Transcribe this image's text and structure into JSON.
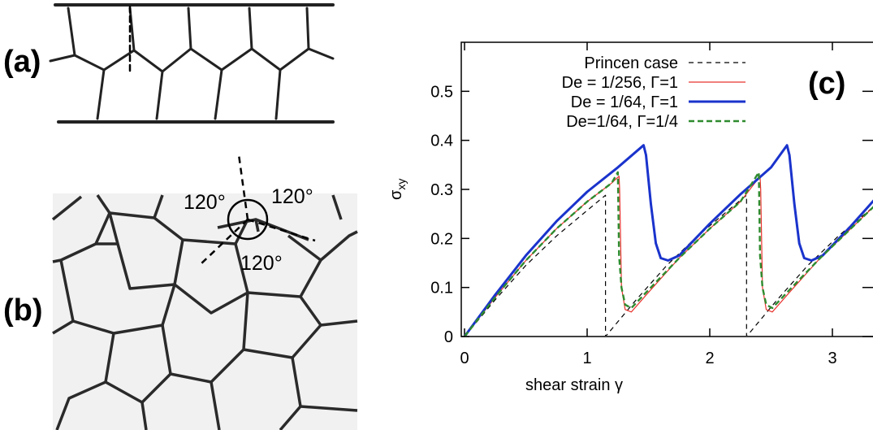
{
  "panels": {
    "a": {
      "label": "(a)"
    },
    "b": {
      "label": "(b)",
      "angles": [
        "120°",
        "120°",
        "120°"
      ]
    },
    "c": {
      "label": "(c)"
    }
  },
  "chart_data": {
    "type": "line",
    "title": "",
    "xlabel": "shear strain γ",
    "ylabel": "σxy",
    "xlim": [
      0,
      3.4
    ],
    "ylim": [
      0,
      0.6
    ],
    "xticks": [
      0,
      1,
      2,
      3
    ],
    "yticks": [
      0,
      0.1,
      0.2,
      0.3,
      0.4,
      0.5
    ],
    "grid": false,
    "legend_position": "top-left",
    "series": [
      {
        "name": "Princen case",
        "color": "#000000",
        "style": "dashed",
        "x": [
          0,
          0.25,
          0.5,
          0.75,
          1.0,
          1.15,
          1.15,
          1.4,
          1.65,
          1.9,
          2.15,
          2.3,
          2.3,
          2.55,
          2.8,
          3.05,
          3.3,
          3.4
        ],
        "y": [
          0,
          0.075,
          0.145,
          0.205,
          0.257,
          0.288,
          0.0,
          0.075,
          0.145,
          0.205,
          0.257,
          0.288,
          0.0,
          0.075,
          0.145,
          0.205,
          0.257,
          0.275
        ]
      },
      {
        "name": "De = 1/256, Γ=1",
        "color": "#e8332e",
        "style": "solid",
        "x": [
          0,
          0.25,
          0.5,
          0.75,
          1.0,
          1.2,
          1.26,
          1.265,
          1.28,
          1.31,
          1.36,
          1.5,
          1.75,
          2.0,
          2.25,
          2.41,
          2.415,
          2.43,
          2.46,
          2.51,
          2.65,
          2.9,
          3.15,
          3.4
        ],
        "y": [
          0,
          0.08,
          0.155,
          0.22,
          0.275,
          0.313,
          0.327,
          0.3,
          0.1,
          0.055,
          0.05,
          0.09,
          0.16,
          0.22,
          0.275,
          0.327,
          0.3,
          0.1,
          0.055,
          0.05,
          0.09,
          0.16,
          0.22,
          0.28
        ]
      },
      {
        "name": "De = 1/64, Γ=1",
        "color": "#1a33cc",
        "style": "solid",
        "x": [
          0,
          0.25,
          0.5,
          0.75,
          1.0,
          1.25,
          1.46,
          1.48,
          1.52,
          1.56,
          1.6,
          1.66,
          1.75,
          2.0,
          2.25,
          2.5,
          2.63,
          2.65,
          2.69,
          2.73,
          2.77,
          2.83,
          2.92,
          3.15,
          3.4
        ],
        "y": [
          0,
          0.085,
          0.165,
          0.235,
          0.295,
          0.345,
          0.39,
          0.37,
          0.27,
          0.19,
          0.16,
          0.155,
          0.165,
          0.23,
          0.29,
          0.345,
          0.39,
          0.37,
          0.27,
          0.19,
          0.16,
          0.155,
          0.165,
          0.225,
          0.295
        ]
      },
      {
        "name": "De=1/64, Γ=1/4",
        "color": "#2e8b2e",
        "style": "dashed",
        "x": [
          0,
          0.25,
          0.5,
          0.75,
          1.0,
          1.2,
          1.25,
          1.26,
          1.28,
          1.31,
          1.36,
          1.5,
          1.75,
          2.0,
          2.25,
          2.4,
          2.41,
          2.43,
          2.46,
          2.51,
          2.65,
          2.9,
          3.15,
          3.4
        ],
        "y": [
          0,
          0.08,
          0.155,
          0.22,
          0.275,
          0.313,
          0.335,
          0.165,
          0.1,
          0.065,
          0.058,
          0.095,
          0.16,
          0.22,
          0.275,
          0.335,
          0.165,
          0.1,
          0.065,
          0.058,
          0.095,
          0.16,
          0.22,
          0.28
        ]
      }
    ]
  }
}
